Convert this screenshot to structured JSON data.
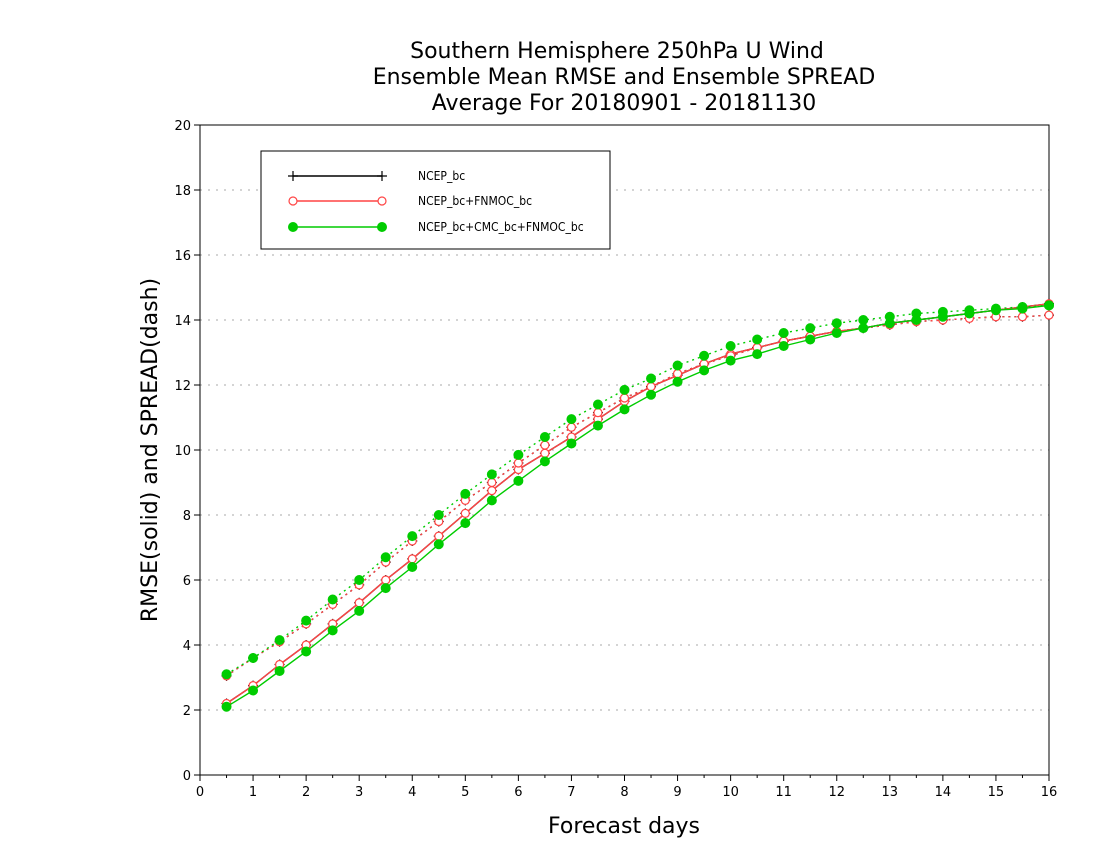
{
  "chart_data": {
    "type": "line",
    "title": [
      "Southern Hemisphere 250hPa U Wind",
      "Ensemble Mean RMSE and Ensemble SPREAD",
      "Average For 20180901 - 20181130"
    ],
    "xlabel": "Forecast days",
    "ylabel": "RMSE(solid) and SPREAD(dash)",
    "xlim": [
      0,
      16
    ],
    "ylim": [
      0,
      20
    ],
    "xticks": [
      0,
      1,
      2,
      3,
      4,
      5,
      6,
      7,
      8,
      9,
      10,
      11,
      12,
      13,
      14,
      15,
      16
    ],
    "yticks": [
      0,
      2,
      4,
      6,
      8,
      10,
      12,
      14,
      16,
      18,
      20
    ],
    "grid": true,
    "legend_position": "top-left",
    "x": [
      0.5,
      1,
      1.5,
      2,
      2.5,
      3,
      3.5,
      4,
      4.5,
      5,
      5.5,
      6,
      6.5,
      7,
      7.5,
      8,
      8.5,
      9,
      9.5,
      10,
      10.5,
      11,
      11.5,
      12,
      12.5,
      13,
      13.5,
      14,
      14.5,
      15,
      15.5,
      16
    ],
    "series": [
      {
        "name": "NCEP_bc",
        "color": "#000000",
        "marker": "plus",
        "rmse": [
          2.2,
          2.75,
          3.4,
          4.0,
          4.65,
          5.3,
          6.0,
          6.65,
          7.35,
          8.05,
          8.75,
          9.4,
          9.9,
          10.4,
          10.95,
          11.5,
          11.95,
          12.3,
          12.65,
          12.95,
          13.15,
          13.35,
          13.5,
          13.65,
          13.75,
          13.9,
          14.0,
          14.1,
          14.2,
          14.3,
          14.4,
          14.5
        ],
        "spread": [
          3.05,
          3.6,
          4.1,
          4.65,
          5.25,
          5.85,
          6.55,
          7.2,
          7.8,
          8.45,
          9.0,
          9.6,
          10.15,
          10.7,
          11.15,
          11.6,
          11.95,
          12.35,
          12.65,
          12.9,
          13.15,
          13.35,
          13.5,
          13.65,
          13.75,
          13.85,
          13.95,
          14.0,
          14.05,
          14.1,
          14.1,
          14.15
        ]
      },
      {
        "name": "NCEP_bc+FNMOC_bc",
        "color": "#ff4444",
        "marker": "open-circle",
        "rmse": [
          2.2,
          2.75,
          3.4,
          4.0,
          4.65,
          5.3,
          6.0,
          6.65,
          7.35,
          8.05,
          8.75,
          9.4,
          9.9,
          10.4,
          10.95,
          11.5,
          11.95,
          12.3,
          12.65,
          12.95,
          13.15,
          13.35,
          13.5,
          13.65,
          13.75,
          13.9,
          14.0,
          14.1,
          14.2,
          14.3,
          14.4,
          14.5
        ],
        "spread": [
          3.05,
          3.6,
          4.1,
          4.65,
          5.25,
          5.85,
          6.55,
          7.2,
          7.8,
          8.45,
          9.0,
          9.6,
          10.15,
          10.7,
          11.15,
          11.6,
          11.95,
          12.35,
          12.65,
          12.9,
          13.15,
          13.35,
          13.5,
          13.65,
          13.75,
          13.85,
          13.95,
          14.0,
          14.05,
          14.1,
          14.1,
          14.15
        ]
      },
      {
        "name": "NCEP_bc+CMC_bc+FNMOC_bc",
        "color": "#00cc00",
        "marker": "filled-circle",
        "rmse": [
          2.1,
          2.6,
          3.2,
          3.8,
          4.45,
          5.05,
          5.75,
          6.4,
          7.1,
          7.75,
          8.45,
          9.05,
          9.65,
          10.2,
          10.75,
          11.25,
          11.7,
          12.1,
          12.45,
          12.75,
          12.95,
          13.2,
          13.4,
          13.6,
          13.75,
          13.9,
          14.0,
          14.1,
          14.2,
          14.3,
          14.35,
          14.45
        ],
        "spread": [
          3.1,
          3.6,
          4.15,
          4.75,
          5.4,
          6.0,
          6.7,
          7.35,
          8.0,
          8.65,
          9.25,
          9.85,
          10.4,
          10.95,
          11.4,
          11.85,
          12.2,
          12.6,
          12.9,
          13.2,
          13.4,
          13.6,
          13.75,
          13.9,
          14.0,
          14.1,
          14.2,
          14.25,
          14.3,
          14.35,
          14.4,
          14.45
        ]
      }
    ]
  }
}
